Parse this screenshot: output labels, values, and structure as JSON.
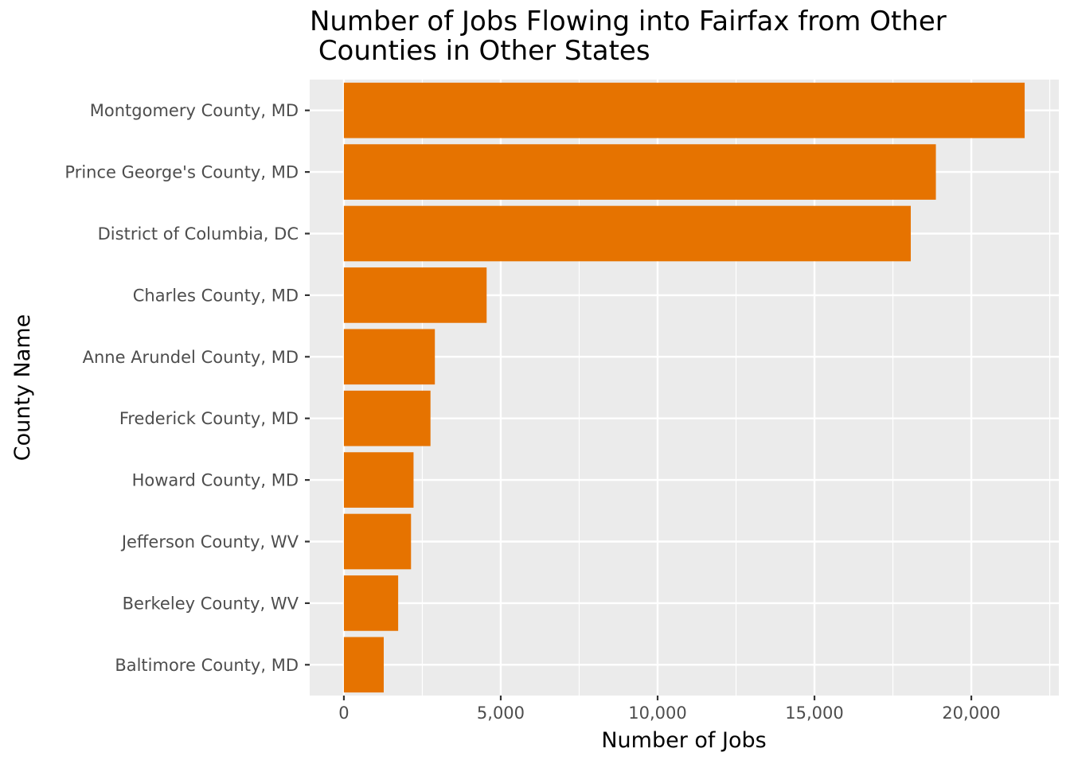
{
  "chart_data": {
    "type": "bar",
    "orientation": "horizontal",
    "title": "Number of Jobs Flowing into Fairfax from Other\n Counties in Other States",
    "xlabel": "Number of Jobs",
    "ylabel": "County Name",
    "categories": [
      "Montgomery County, MD",
      "Prince George's County, MD",
      "District of Columbia, DC",
      "Charles County, MD",
      "Anne Arundel County, MD",
      "Frederick County, MD",
      "Howard County, MD",
      "Jefferson County, WV",
      "Berkeley County, WV",
      "Baltimore County, MD"
    ],
    "values": [
      21700,
      18870,
      18070,
      4550,
      2900,
      2760,
      2220,
      2140,
      1730,
      1270
    ],
    "xlim": [
      -1090,
      22790
    ],
    "xticks": [
      0,
      5000,
      10000,
      15000,
      20000
    ],
    "xtick_labels": [
      "0",
      "5,000",
      "10,000",
      "15,000",
      "20,000"
    ],
    "grid": true,
    "bar_color": "#E67300",
    "panel_color": "#EBEBEB",
    "grid_color": "#FFFFFF"
  }
}
